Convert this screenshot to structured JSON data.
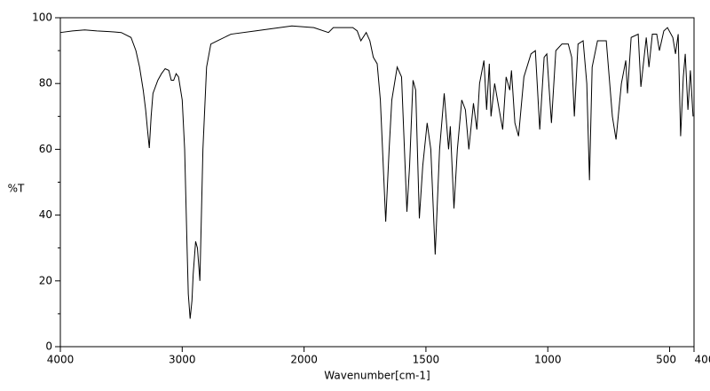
{
  "chart_data": {
    "type": "line",
    "xlabel": "Wavenumber[cm-1]",
    "ylabel": "%T",
    "xlim": [
      4000,
      400
    ],
    "x_scale_change": {
      "at": 2000,
      "factor": 2
    },
    "xticks": [
      4000,
      3000,
      2000,
      1500,
      1000,
      500,
      400
    ],
    "ylim": [
      0,
      100
    ],
    "yticks": [
      0,
      20,
      40,
      60,
      80,
      100
    ],
    "yminorticks": [
      10,
      30,
      50,
      70,
      90
    ],
    "series": [
      {
        "color": "#000000",
        "x": [
          4000,
          3900,
          3800,
          3700,
          3600,
          3500,
          3420,
          3380,
          3350,
          3320,
          3300,
          3285,
          3270,
          3255,
          3240,
          3200,
          3170,
          3140,
          3110,
          3090,
          3070,
          3050,
          3030,
          3000,
          2980,
          2960,
          2950,
          2935,
          2920,
          2910,
          2890,
          2875,
          2855,
          2830,
          2800,
          2765,
          2710,
          2600,
          2400,
          2200,
          2100,
          1960,
          1900,
          1880,
          1800,
          1782,
          1767,
          1745,
          1730,
          1716,
          1700,
          1687,
          1665,
          1651,
          1640,
          1618,
          1600,
          1578,
          1567,
          1553,
          1542,
          1527,
          1513,
          1495,
          1480,
          1462,
          1444,
          1425,
          1407,
          1400,
          1385,
          1371,
          1353,
          1338,
          1324,
          1305,
          1291,
          1280,
          1262,
          1251,
          1240,
          1233,
          1218,
          1204,
          1185,
          1171,
          1156,
          1149,
          1135,
          1120,
          1098,
          1069,
          1051,
          1033,
          1015,
          1004,
          985,
          967,
          942,
          916,
          902,
          891,
          876,
          855,
          840,
          829,
          818,
          796,
          760,
          735,
          720,
          698,
          680,
          673,
          658,
          629,
          618,
          596,
          585,
          571,
          553,
          542,
          524,
          509,
          487,
          476,
          465,
          455,
          444,
          436,
          425,
          415,
          404
        ],
        "values": [
          95.5,
          96,
          96.3,
          96,
          95.8,
          95.5,
          94,
          90,
          85,
          78,
          72,
          66,
          60.4,
          70,
          77,
          81,
          83,
          84.5,
          84,
          81,
          81,
          83,
          82,
          75,
          60,
          30,
          16,
          8.5,
          14,
          22,
          32,
          30,
          20,
          60,
          85,
          92,
          93,
          95,
          96,
          97,
          97.5,
          97,
          95.5,
          97,
          97,
          96,
          93,
          95.5,
          93,
          88,
          86,
          75,
          38,
          60,
          75,
          85,
          82,
          41,
          55,
          81,
          78,
          39,
          55,
          68,
          60,
          28,
          60,
          77,
          60,
          67,
          42,
          60,
          75,
          72,
          60,
          74,
          66,
          80,
          87,
          72,
          86,
          70,
          80,
          74,
          66,
          82,
          78,
          84,
          68,
          64,
          82,
          89,
          90,
          66,
          88,
          89,
          68,
          90,
          92,
          92,
          88,
          70,
          92,
          93,
          80,
          50.6,
          85,
          93,
          93,
          70,
          63,
          80,
          87,
          77,
          94,
          95,
          79,
          94,
          85,
          95,
          95,
          90,
          96,
          97,
          94,
          89,
          95,
          64,
          82,
          89,
          72,
          84,
          70
        ]
      }
    ]
  }
}
